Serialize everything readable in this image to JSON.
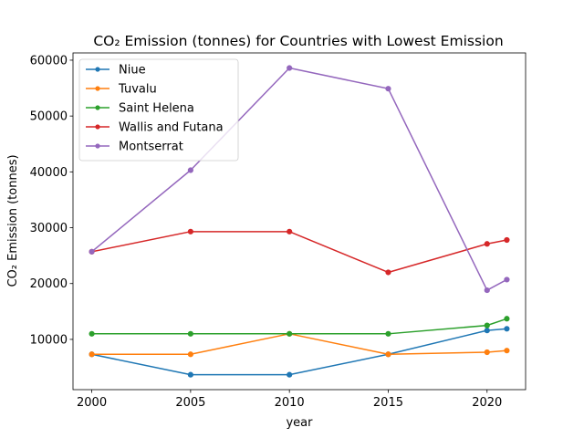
{
  "chart_data": {
    "type": "line",
    "title": "CO₂ Emission (tonnes) for Countries with Lowest Emission",
    "xlabel": "year",
    "ylabel": "CO₂ Emission (tonnes)",
    "x": [
      2000,
      2005,
      2010,
      2015,
      2020,
      2021
    ],
    "xticks": [
      2000,
      2005,
      2010,
      2015,
      2020
    ],
    "xlim": [
      1999.05,
      2021.95
    ],
    "yticks": [
      10000,
      20000,
      30000,
      40000,
      50000,
      60000
    ],
    "ylim": [
      1000,
      61300
    ],
    "grid": false,
    "legend_position": "top-left",
    "series": [
      {
        "name": "Niue",
        "color": "#1f77b4",
        "values": [
          7330,
          3670,
          3670,
          7330,
          11600,
          11900
        ]
      },
      {
        "name": "Tuvalu",
        "color": "#ff7f0e",
        "values": [
          7330,
          7330,
          11000,
          7330,
          7700,
          8000
        ]
      },
      {
        "name": "Saint Helena",
        "color": "#2ca02c",
        "values": [
          11000,
          11000,
          11000,
          11000,
          12500,
          13700
        ]
      },
      {
        "name": "Wallis and Futana",
        "color": "#d62728",
        "values": [
          25700,
          29300,
          29300,
          22000,
          27100,
          27800
        ]
      },
      {
        "name": "Montserrat",
        "color": "#9467bd",
        "values": [
          25700,
          40300,
          58600,
          54900,
          18800,
          20700
        ]
      }
    ]
  }
}
